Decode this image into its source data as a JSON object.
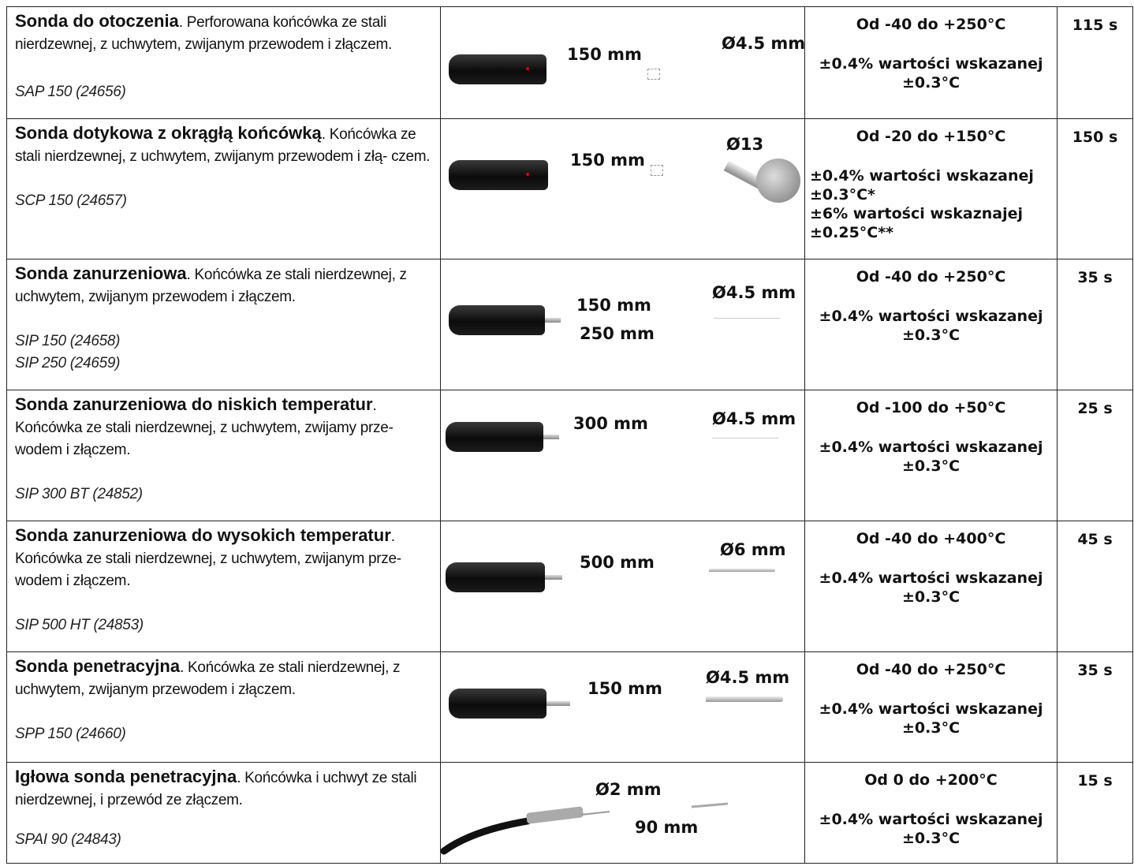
{
  "rows": [
    {
      "name": "Sonda do otoczenia",
      "desc": ". Perforowana końcówka ze stali nierdzewnej, z uchwytem, zwijanym przewodem i złączem.",
      "codes": [
        "SAP 150 (24656)"
      ],
      "length_labels": [
        "150 mm"
      ],
      "dia_label": "Ø4.5 mm",
      "range": "Od -40 do +250°C",
      "accuracy": [
        "±0.4% wartości wskazanej",
        "±0.3°C"
      ],
      "time": "115 s"
    },
    {
      "name": "Sonda dotykowa z okrągłą końcówką",
      "desc": ". Końcówka ze stali nierdzewnej, z uchwytem, zwijanym przewodem i złą- czem.",
      "codes": [
        "SCP 150 (24657)"
      ],
      "length_labels": [
        "150 mm"
      ],
      "dia_label": "Ø13",
      "range": "Od -20 do +150°C",
      "accuracy": [
        "±0.4% wartości wskazanej",
        "±0.3°C*",
        "±6% wartości wskaznajej",
        "±0.25°C**"
      ],
      "time": "150 s"
    },
    {
      "name": "Sonda zanurzeniowa",
      "desc": ". Końcówka ze stali nierdzewnej, z uchwytem, zwijanym przewodem i złączem.",
      "codes": [
        "SIP 150 (24658)",
        "SIP 250 (24659)"
      ],
      "length_labels": [
        "150 mm",
        "250 mm"
      ],
      "dia_label": "Ø4.5 mm",
      "range": "Od -40 do +250°C",
      "accuracy": [
        "±0.4% wartości wskazanej",
        "±0.3°C"
      ],
      "time": "35 s"
    },
    {
      "name": "Sonda zanurzeniowa do niskich temperatur",
      "desc": ". Końcówka ze stali nierdzewnej, z uchwytem, zwijamy prze- wodem i złączem.",
      "codes": [
        "SIP 300 BT (24852)"
      ],
      "length_labels": [
        "300 mm"
      ],
      "dia_label": "Ø4.5 mm",
      "range": "Od -100 do +50°C",
      "accuracy": [
        "±0.4% wartości wskazanej",
        "±0.3°C"
      ],
      "time": "25 s"
    },
    {
      "name": "Sonda zanurzeniowa do wysokich temperatur",
      "desc": ". Końcówka ze stali nierdzewnej, z uchwytem, zwijanym prze- wodem i złączem.",
      "codes": [
        "SIP 500 HT (24853)"
      ],
      "length_labels": [
        "500 mm"
      ],
      "dia_label": "Ø6 mm",
      "range": "Od -40 do +400°C",
      "accuracy": [
        "±0.4% wartości wskazanej",
        "±0.3°C"
      ],
      "time": "45 s"
    },
    {
      "name": "Sonda penetracyjna",
      "desc": ". Końcówka ze stali nierdzewnej, z uchwytem, zwijanym przewodem i złączem.",
      "codes": [
        "SPP 150 (24660)"
      ],
      "length_labels": [
        "150 mm"
      ],
      "dia_label": "Ø4.5 mm",
      "range": "Od -40 do +250°C",
      "accuracy": [
        "±0.4% wartości wskazanej",
        "±0.3°C"
      ],
      "time": "35 s"
    },
    {
      "name": "Igłowa sonda penetracyjna",
      "desc": ". Końcówka i uchwyt ze stali nierdzewnej, i przewód ze złączem.",
      "codes": [
        "SPAI 90 (24843)"
      ],
      "length_labels": [
        "90 mm"
      ],
      "dia_label": "Ø2 mm",
      "range": "Od 0 do +200°C",
      "accuracy": [
        "±0.4% wartości wskazanej",
        "±0.3°C"
      ],
      "time": "15 s"
    }
  ]
}
